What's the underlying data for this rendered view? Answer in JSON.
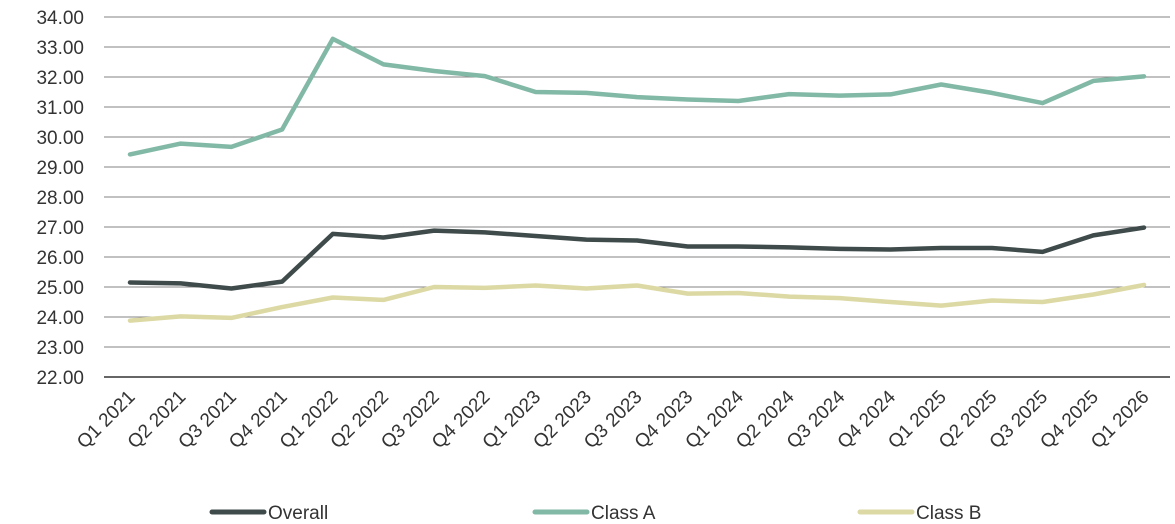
{
  "chart_data": {
    "type": "line",
    "title": "",
    "xlabel": "",
    "ylabel": "",
    "ylim": [
      22,
      34
    ],
    "y_ticks": [
      "22.00",
      "23.00",
      "24.00",
      "25.00",
      "26.00",
      "27.00",
      "28.00",
      "29.00",
      "30.00",
      "31.00",
      "32.00",
      "33.00",
      "34.00"
    ],
    "grid": "horizontal",
    "legend_position": "bottom",
    "categories": [
      "Q1 2021",
      "Q2 2021",
      "Q3 2021",
      "Q4 2021",
      "Q1 2022",
      "Q2 2022",
      "Q3 2022",
      "Q4 2022",
      "Q1 2023",
      "Q2 2023",
      "Q3 2023",
      "Q4 2023",
      "Q1 2024",
      "Q2 2024",
      "Q3 2024",
      "Q4 2024",
      "Q1 2025",
      "Q2 2025",
      "Q3 2025",
      "Q4 2025",
      "Q1 2026"
    ],
    "series": [
      {
        "name": "Overall",
        "color": "#3f4a4a",
        "values": [
          25.15,
          25.12,
          24.95,
          25.18,
          26.77,
          26.65,
          26.88,
          26.82,
          26.7,
          26.58,
          26.55,
          26.35,
          26.35,
          26.32,
          26.27,
          26.25,
          26.3,
          26.3,
          26.17,
          26.72,
          26.98
        ]
      },
      {
        "name": "Class A",
        "color": "#82b8a6",
        "values": [
          29.42,
          29.78,
          29.67,
          30.25,
          33.27,
          32.42,
          32.2,
          32.03,
          31.5,
          31.47,
          31.33,
          31.25,
          31.2,
          31.43,
          31.38,
          31.42,
          31.75,
          31.47,
          31.13,
          31.87,
          32.02
        ]
      },
      {
        "name": "Class B",
        "color": "#dcd9a4",
        "values": [
          23.88,
          24.02,
          23.97,
          24.33,
          24.65,
          24.57,
          25.0,
          24.97,
          25.05,
          24.95,
          25.05,
          24.78,
          24.8,
          24.68,
          24.63,
          24.5,
          24.38,
          24.55,
          24.5,
          24.75,
          25.07
        ]
      }
    ]
  },
  "colors": {
    "grid": "#5a5a5a",
    "text": "#333333"
  }
}
